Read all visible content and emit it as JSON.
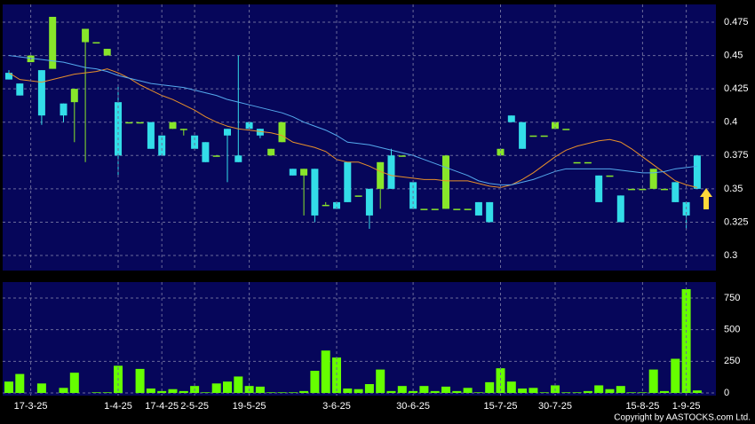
{
  "copyright": "Copyright by AASTOCKS.com Ltd.",
  "chart_data": [
    {
      "type": "candlestick",
      "up_color": "#88e62a",
      "down_color": "#33dde8",
      "ylim": [
        0.2887,
        0.4883
      ],
      "yticks": [
        0.3,
        0.325,
        0.35,
        0.375,
        0.4,
        0.425,
        0.45,
        0.475
      ],
      "grid": true,
      "open": [
        0.437,
        0.429,
        0.445,
        0.439,
        0.44,
        0.414,
        0.415,
        0.46,
        0.46,
        0.45,
        0.415,
        0.4,
        0.4,
        0.4,
        0.39,
        0.395,
        0.395,
        0.39,
        0.385,
        0.375,
        0.395,
        0.375,
        0.4,
        0.395,
        0.375,
        0.385,
        0.365,
        0.36,
        0.365,
        0.338,
        0.34,
        0.37,
        0.345,
        0.35,
        0.35,
        0.375,
        0.375,
        0.355,
        0.335,
        0.335,
        0.335,
        0.335,
        0.335,
        0.34,
        0.34,
        0.375,
        0.405,
        0.4,
        0.39,
        0.39,
        0.395,
        0.395,
        0.37,
        0.37,
        0.36,
        0.36,
        0.345,
        0.35,
        0.35,
        0.35,
        0.35,
        0.355,
        0.34,
        0.375
      ],
      "high": [
        0.439,
        0.429,
        0.45,
        0.439,
        0.479,
        0.414,
        0.425,
        0.47,
        0.46,
        0.455,
        0.428,
        0.4,
        0.4,
        0.4,
        0.39,
        0.4,
        0.395,
        0.39,
        0.385,
        0.375,
        0.395,
        0.45,
        0.4,
        0.395,
        0.38,
        0.4,
        0.365,
        0.365,
        0.365,
        0.34,
        0.34,
        0.37,
        0.345,
        0.35,
        0.37,
        0.38,
        0.375,
        0.355,
        0.335,
        0.335,
        0.375,
        0.335,
        0.335,
        0.34,
        0.34,
        0.38,
        0.405,
        0.4,
        0.39,
        0.39,
        0.4,
        0.395,
        0.37,
        0.37,
        0.36,
        0.36,
        0.345,
        0.35,
        0.35,
        0.365,
        0.35,
        0.355,
        0.34,
        0.375
      ],
      "low": [
        0.432,
        0.42,
        0.445,
        0.398,
        0.44,
        0.4,
        0.385,
        0.37,
        0.46,
        0.45,
        0.36,
        0.4,
        0.4,
        0.38,
        0.375,
        0.395,
        0.39,
        0.38,
        0.37,
        0.375,
        0.355,
        0.37,
        0.395,
        0.388,
        0.375,
        0.385,
        0.36,
        0.33,
        0.325,
        0.338,
        0.335,
        0.34,
        0.345,
        0.32,
        0.335,
        0.35,
        0.375,
        0.335,
        0.335,
        0.335,
        0.335,
        0.335,
        0.335,
        0.33,
        0.325,
        0.375,
        0.4,
        0.38,
        0.39,
        0.39,
        0.395,
        0.395,
        0.37,
        0.37,
        0.34,
        0.36,
        0.325,
        0.35,
        0.35,
        0.35,
        0.35,
        0.34,
        0.32,
        0.35
      ],
      "close": [
        0.432,
        0.42,
        0.45,
        0.405,
        0.479,
        0.405,
        0.425,
        0.47,
        0.46,
        0.455,
        0.375,
        0.4,
        0.4,
        0.38,
        0.375,
        0.4,
        0.395,
        0.38,
        0.37,
        0.375,
        0.39,
        0.37,
        0.395,
        0.39,
        0.38,
        0.4,
        0.36,
        0.365,
        0.33,
        0.338,
        0.335,
        0.34,
        0.345,
        0.33,
        0.37,
        0.35,
        0.375,
        0.335,
        0.335,
        0.335,
        0.375,
        0.335,
        0.335,
        0.33,
        0.325,
        0.38,
        0.4,
        0.38,
        0.39,
        0.39,
        0.4,
        0.395,
        0.37,
        0.37,
        0.34,
        0.36,
        0.325,
        0.35,
        0.35,
        0.365,
        0.35,
        0.34,
        0.33,
        0.35
      ],
      "series": [
        {
          "color": "#e8902a",
          "values": [
            0.437,
            0.432,
            0.431,
            0.43,
            0.432,
            0.434,
            0.436,
            0.437,
            0.438,
            0.44,
            0.437,
            0.433,
            0.428,
            0.424,
            0.42,
            0.417,
            0.413,
            0.409,
            0.404,
            0.4,
            0.397,
            0.395,
            0.394,
            0.393,
            0.392,
            0.39,
            0.385,
            0.383,
            0.381,
            0.378,
            0.372,
            0.37,
            0.37,
            0.367,
            0.363,
            0.36,
            0.359,
            0.358,
            0.357,
            0.357,
            0.356,
            0.356,
            0.356,
            0.354,
            0.352,
            0.351,
            0.353,
            0.357,
            0.362,
            0.368,
            0.374,
            0.379,
            0.382,
            0.384,
            0.386,
            0.387,
            0.385,
            0.38,
            0.374,
            0.368,
            0.362,
            0.356,
            0.353,
            0.351
          ]
        },
        {
          "color": "#55aaee",
          "values": [
            0.45,
            0.449,
            0.448,
            0.447,
            0.446,
            0.445,
            0.443,
            0.441,
            0.44,
            0.438,
            0.435,
            0.433,
            0.431,
            0.429,
            0.428,
            0.427,
            0.426,
            0.424,
            0.422,
            0.42,
            0.417,
            0.415,
            0.413,
            0.411,
            0.409,
            0.407,
            0.404,
            0.4,
            0.397,
            0.394,
            0.39,
            0.385,
            0.384,
            0.383,
            0.381,
            0.379,
            0.377,
            0.375,
            0.372,
            0.369,
            0.366,
            0.363,
            0.36,
            0.356,
            0.354,
            0.353,
            0.353,
            0.355,
            0.357,
            0.36,
            0.363,
            0.365,
            0.365,
            0.365,
            0.365,
            0.365,
            0.364,
            0.363,
            0.362,
            0.362,
            0.363,
            0.365,
            0.366,
            0.367
          ]
        }
      ]
    },
    {
      "type": "bar",
      "color": "#66ff00",
      "ylim": [
        -21,
        876
      ],
      "yticks": [
        0,
        250,
        500,
        750
      ],
      "grid": true,
      "categories": [
        null,
        null,
        "17-3-25",
        null,
        null,
        null,
        null,
        null,
        null,
        null,
        "1-4-25",
        null,
        null,
        null,
        "17-4-25",
        null,
        null,
        "2-5-25",
        null,
        null,
        null,
        null,
        "19-5-25",
        null,
        null,
        null,
        null,
        null,
        null,
        null,
        "3-6-25",
        null,
        null,
        null,
        null,
        null,
        null,
        "30-6-25",
        null,
        null,
        null,
        null,
        null,
        null,
        null,
        "15-7-25",
        null,
        null,
        null,
        null,
        "30-7-25",
        null,
        null,
        null,
        null,
        null,
        null,
        null,
        "15-8-25",
        null,
        null,
        null,
        "1-9-25",
        null
      ],
      "values": [
        90,
        150,
        0,
        75,
        0,
        40,
        160,
        0,
        5,
        5,
        215,
        0,
        190,
        35,
        15,
        30,
        15,
        55,
        5,
        75,
        90,
        130,
        55,
        50,
        5,
        5,
        5,
        15,
        175,
        335,
        280,
        35,
        30,
        70,
        185,
        15,
        55,
        15,
        55,
        15,
        50,
        15,
        40,
        5,
        85,
        195,
        90,
        35,
        40,
        5,
        60,
        5,
        5,
        15,
        60,
        30,
        55,
        5,
        5,
        185,
        15,
        270,
        820,
        20
      ]
    }
  ]
}
